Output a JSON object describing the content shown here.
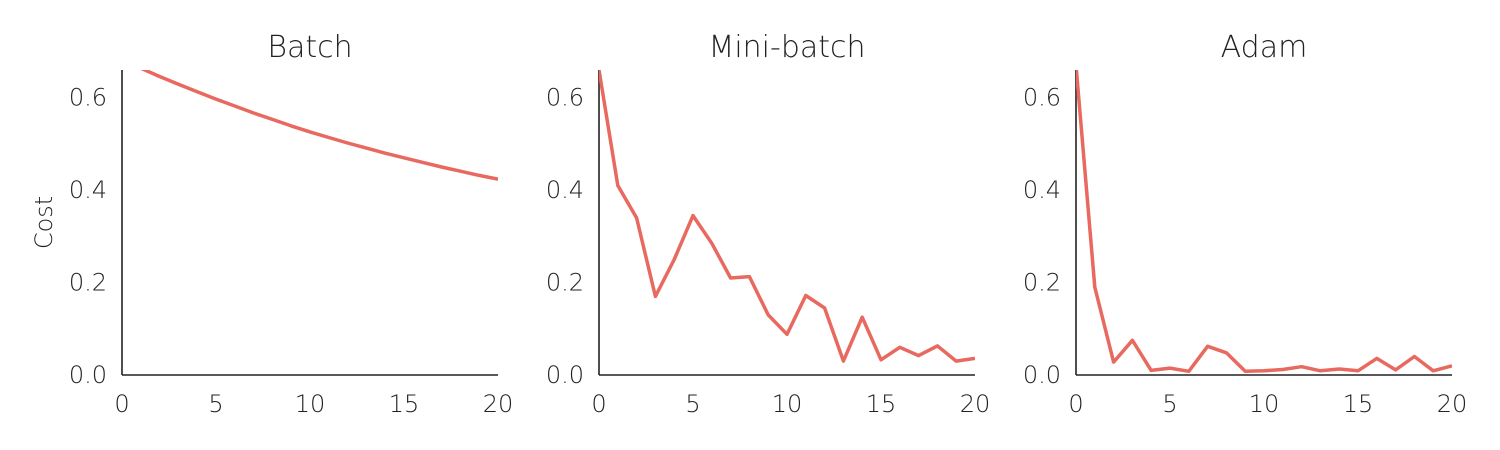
{
  "chart_data": [
    {
      "type": "line",
      "title": "Batch",
      "ylabel": "Cost",
      "xlim": [
        0,
        20
      ],
      "ylim": [
        0,
        0.66
      ],
      "xticks": [
        0,
        5,
        10,
        15,
        20
      ],
      "yticks": [
        0.0,
        0.2,
        0.4,
        0.6
      ],
      "grid": false,
      "x": [
        0,
        1,
        2,
        3,
        4,
        5,
        6,
        7,
        8,
        9,
        10,
        11,
        12,
        13,
        14,
        15,
        16,
        17,
        18,
        19,
        20
      ],
      "values": [
        0.68,
        0.664,
        0.646,
        0.629,
        0.613,
        0.597,
        0.582,
        0.567,
        0.553,
        0.539,
        0.526,
        0.514,
        0.502,
        0.491,
        0.48,
        0.47,
        0.46,
        0.45,
        0.441,
        0.432,
        0.424
      ]
    },
    {
      "type": "line",
      "title": "Mini-batch",
      "xlim": [
        0,
        20
      ],
      "ylim": [
        0,
        0.66
      ],
      "xticks": [
        0,
        5,
        10,
        15,
        20
      ],
      "yticks": [
        0.0,
        0.2,
        0.4,
        0.6
      ],
      "grid": false,
      "x": [
        0,
        1,
        2,
        3,
        4,
        5,
        6,
        7,
        8,
        9,
        10,
        11,
        12,
        13,
        14,
        15,
        16,
        17,
        18,
        19,
        20
      ],
      "values": [
        0.66,
        0.41,
        0.34,
        0.17,
        0.25,
        0.345,
        0.285,
        0.21,
        0.213,
        0.13,
        0.088,
        0.172,
        0.145,
        0.03,
        0.125,
        0.033,
        0.06,
        0.042,
        0.063,
        0.03,
        0.036
      ]
    },
    {
      "type": "line",
      "title": "Adam",
      "xlim": [
        0,
        20
      ],
      "ylim": [
        0,
        0.66
      ],
      "xticks": [
        0,
        5,
        10,
        15,
        20
      ],
      "yticks": [
        0.0,
        0.2,
        0.4,
        0.6
      ],
      "grid": false,
      "x": [
        0,
        1,
        2,
        3,
        4,
        5,
        6,
        7,
        8,
        9,
        10,
        11,
        12,
        13,
        14,
        15,
        16,
        17,
        18,
        19,
        20
      ],
      "values": [
        0.67,
        0.19,
        0.028,
        0.075,
        0.01,
        0.015,
        0.008,
        0.062,
        0.048,
        0.008,
        0.009,
        0.012,
        0.018,
        0.009,
        0.013,
        0.009,
        0.036,
        0.011,
        0.04,
        0.009,
        0.02
      ]
    }
  ],
  "colors": {
    "line": "#e8695f",
    "axis": "#222222"
  }
}
